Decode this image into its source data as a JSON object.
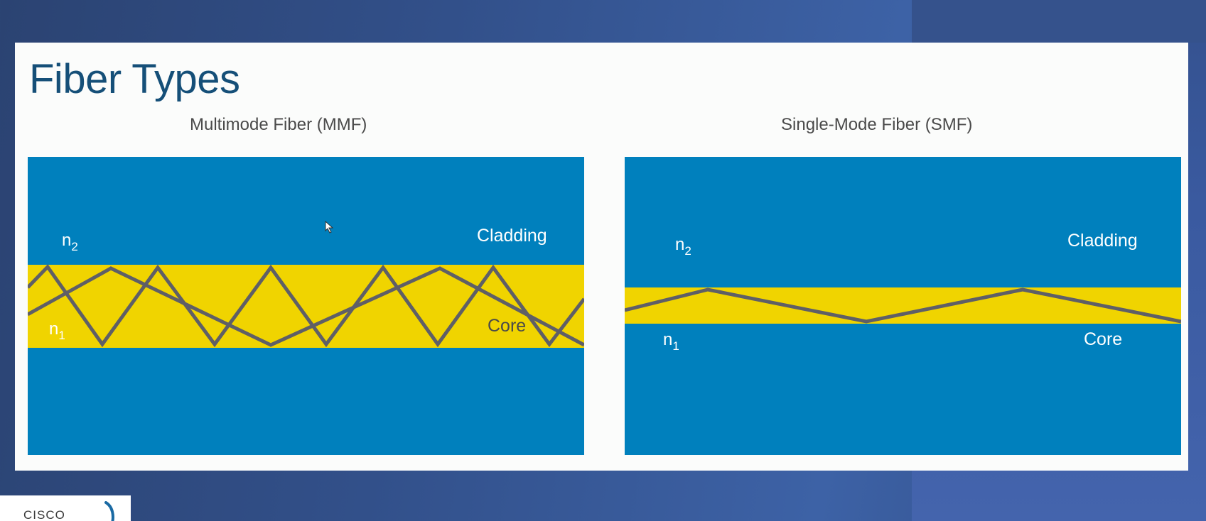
{
  "slide": {
    "title": "Fiber Types"
  },
  "panels": [
    {
      "id": "mmf",
      "title": "Multimode Fiber (MMF)",
      "cladding_label": "Cladding",
      "core_label": "Core",
      "n_core": "n",
      "n_core_sub": "1",
      "n_cladding": "n",
      "n_cladding_sub": "2"
    },
    {
      "id": "smf",
      "title": "Single-Mode Fiber (SMF)",
      "cladding_label": "Cladding",
      "core_label": "Core",
      "n_core": "n",
      "n_core_sub": "1",
      "n_cladding": "n",
      "n_cladding_sub": "2"
    }
  ],
  "colors": {
    "cladding": "#0080bd",
    "core": "#f0d400",
    "ray": "#5f5f66",
    "title": "#154f78"
  },
  "logo": {
    "text": "CISCO"
  }
}
